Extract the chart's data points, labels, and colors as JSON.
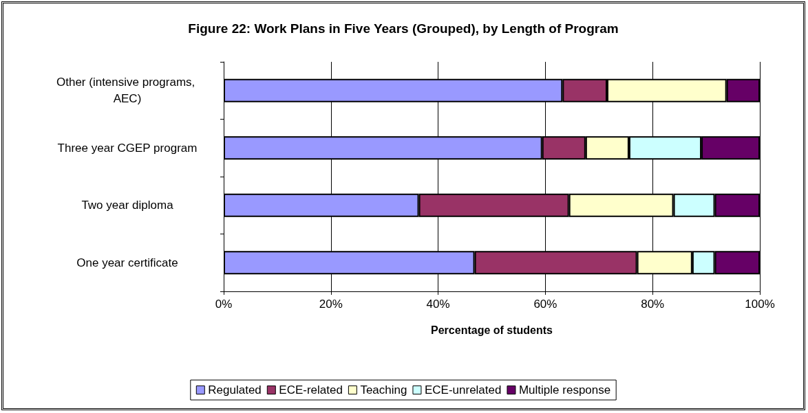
{
  "chart_data": {
    "type": "bar",
    "orientation": "horizontal",
    "stacked": true,
    "title": "Figure 22: Work Plans in Five Years (Grouped), by Length of Program",
    "xlabel": "Percentage of students",
    "categories": [
      "Other (intensive programs, AEC)",
      "Three year CGEP program",
      "Two year diploma",
      "One year certificate"
    ],
    "series": [
      {
        "name": "Regulated",
        "color": "#9999ff",
        "values": [
          63.2,
          59.4,
          36.4,
          46.8
        ]
      },
      {
        "name": "ECE-related",
        "color": "#993366",
        "values": [
          8.3,
          8.1,
          28.0,
          30.3
        ]
      },
      {
        "name": "Teaching",
        "color": "#ffffcc",
        "values": [
          22.3,
          8.1,
          19.5,
          10.3
        ]
      },
      {
        "name": "ECE-unrelated",
        "color": "#ccffff",
        "values": [
          0,
          13.5,
          7.7,
          4.2
        ]
      },
      {
        "name": "Multiple response",
        "color": "#660066",
        "values": [
          6.2,
          10.9,
          8.4,
          8.4
        ]
      }
    ],
    "xlim": [
      0,
      100
    ],
    "xticks": [
      {
        "value": 0,
        "label": "0%"
      },
      {
        "value": 20,
        "label": "20%"
      },
      {
        "value": 40,
        "label": "40%"
      },
      {
        "value": 60,
        "label": "60%"
      },
      {
        "value": 80,
        "label": "80%"
      },
      {
        "value": 100,
        "label": "100%"
      }
    ],
    "grid": "x",
    "legend": "bottom"
  }
}
